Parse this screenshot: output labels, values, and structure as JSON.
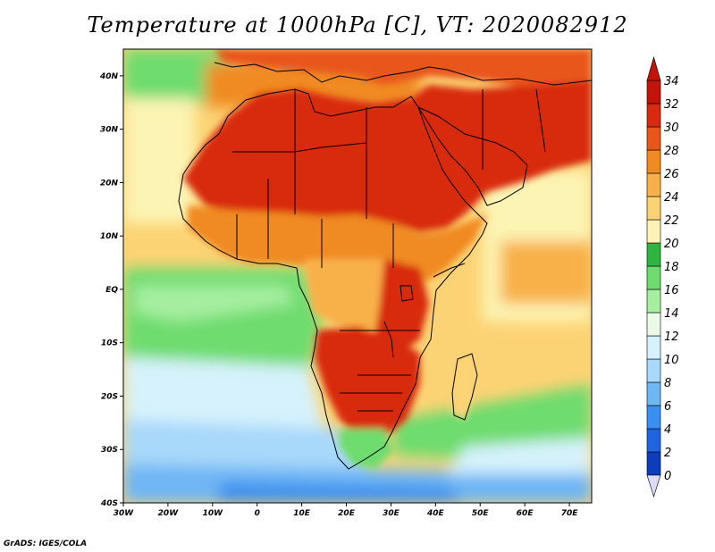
{
  "title": "Temperature at 1000hPa [C], VT: 2020082912",
  "credit": "GrADS: IGES/COLA",
  "map": {
    "lon_range": [
      -30,
      75
    ],
    "lat_range": [
      -40,
      45
    ],
    "x_ticks": [
      "30W",
      "20W",
      "10W",
      "0",
      "10E",
      "20E",
      "30E",
      "40E",
      "50E",
      "60E",
      "70E"
    ],
    "y_ticks": [
      "40S",
      "30S",
      "20S",
      "10S",
      "EQ",
      "10N",
      "20N",
      "30N",
      "40N"
    ]
  },
  "colorbar": {
    "labels": [
      "0",
      "2",
      "4",
      "6",
      "8",
      "10",
      "12",
      "14",
      "16",
      "18",
      "20",
      "22",
      "24",
      "26",
      "28",
      "30",
      "32",
      "34"
    ],
    "colors": [
      "#1f1f8c",
      "#0c3dbb",
      "#1f64e0",
      "#3a8ff0",
      "#6eb6f4",
      "#a8d8fa",
      "#d6f2fc",
      "#eafae6",
      "#a6eea0",
      "#6edc6e",
      "#2fb53f",
      "#fcf4b4",
      "#fcd374",
      "#f8b04a",
      "#f08a23",
      "#e8561a",
      "#d82a10",
      "#c21408"
    ]
  },
  "colors": {
    "hot": "#d82a10",
    "hotter": "#c21408",
    "warm": "#f08a23",
    "mild": "#fcd374",
    "pale": "#fcf4b4",
    "green": "#6edc6e",
    "cool": "#d6f2fc",
    "cold": "#3a8ff0"
  }
}
